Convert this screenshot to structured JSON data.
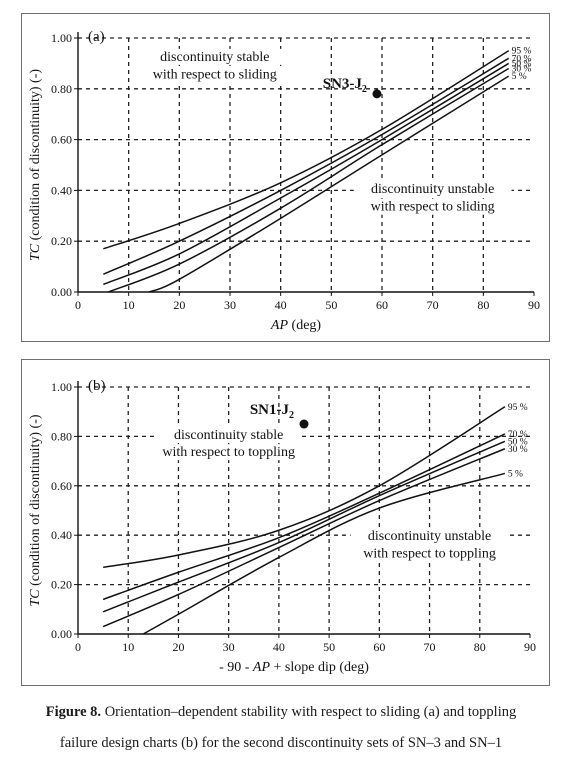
{
  "chart_data": [
    {
      "type": "line",
      "panel_label": "(a)",
      "ylabel_main": "TC",
      "ylabel_rest": " (condition of discontinuity) (-)",
      "xlabel": "AP",
      "xlabel_rest": " (deg)",
      "xlim": [
        0,
        90
      ],
      "ylim": [
        0,
        1
      ],
      "xticks": [
        "0",
        "10",
        "20",
        "30",
        "40",
        "50",
        "60",
        "70",
        "80",
        "90"
      ],
      "yticks": [
        "0.00",
        "0.20",
        "0.40",
        "0.60",
        "0.80",
        "1.00"
      ],
      "grid": true,
      "series": [
        {
          "name": "95 %",
          "points": [
            [
              5,
              0.17
            ],
            [
              20,
              0.27
            ],
            [
              40,
              0.43
            ],
            [
              60,
              0.64
            ],
            [
              85,
              0.95
            ]
          ]
        },
        {
          "name": "70 %",
          "points": [
            [
              5,
              0.07
            ],
            [
              20,
              0.2
            ],
            [
              40,
              0.4
            ],
            [
              60,
              0.62
            ],
            [
              85,
              0.92
            ]
          ]
        },
        {
          "name": "50 %",
          "points": [
            [
              5,
              0.03
            ],
            [
              20,
              0.15
            ],
            [
              40,
              0.37
            ],
            [
              60,
              0.6
            ],
            [
              85,
              0.9
            ]
          ]
        },
        {
          "name": "30 %",
          "points": [
            [
              6,
              0.0
            ],
            [
              20,
              0.11
            ],
            [
              40,
              0.33
            ],
            [
              60,
              0.58
            ],
            [
              85,
              0.88
            ]
          ]
        },
        {
          "name": "5 %",
          "points": [
            [
              14,
              0.0
            ],
            [
              20,
              0.05
            ],
            [
              40,
              0.29
            ],
            [
              60,
              0.54
            ],
            [
              85,
              0.85
            ]
          ]
        }
      ],
      "annotations": [
        {
          "text": "discontinuity stable",
          "x": 27,
          "y": 0.91
        },
        {
          "text": "with respect to sliding",
          "x": 27,
          "y": 0.84
        },
        {
          "text": "discontinuity unstable",
          "x": 70,
          "y": 0.39
        },
        {
          "text": "with respect to sliding",
          "x": 70,
          "y": 0.32
        }
      ],
      "point": {
        "label": "SN3-J",
        "sub": "2",
        "x": 59,
        "y": 0.78
      }
    },
    {
      "type": "line",
      "panel_label": "(b)",
      "ylabel_main": "TC",
      "ylabel_rest": " (condition of discontinuity) (-)",
      "xlabel_pre": "- 90 - ",
      "xlabel": "AP",
      "xlabel_rest": " + slope dip (deg)",
      "xlim": [
        0,
        90
      ],
      "ylim": [
        0,
        1
      ],
      "xticks": [
        "0",
        "10",
        "20",
        "30",
        "40",
        "50",
        "60",
        "70",
        "80",
        "90"
      ],
      "yticks": [
        "0.00",
        "0.20",
        "0.40",
        "0.60",
        "0.80",
        "1.00"
      ],
      "grid": true,
      "series": [
        {
          "name": "95 %",
          "points": [
            [
              5,
              0.27
            ],
            [
              20,
              0.32
            ],
            [
              40,
              0.42
            ],
            [
              60,
              0.6
            ],
            [
              85,
              0.92
            ]
          ]
        },
        {
          "name": "70 %",
          "points": [
            [
              5,
              0.14
            ],
            [
              20,
              0.25
            ],
            [
              40,
              0.39
            ],
            [
              60,
              0.57
            ],
            [
              85,
              0.81
            ]
          ]
        },
        {
          "name": "50 %",
          "points": [
            [
              5,
              0.09
            ],
            [
              20,
              0.21
            ],
            [
              40,
              0.37
            ],
            [
              60,
              0.56
            ],
            [
              85,
              0.78
            ]
          ]
        },
        {
          "name": "30 %",
          "points": [
            [
              5,
              0.03
            ],
            [
              20,
              0.16
            ],
            [
              40,
              0.35
            ],
            [
              60,
              0.54
            ],
            [
              85,
              0.75
            ]
          ]
        },
        {
          "name": "5 %",
          "points": [
            [
              13,
              0.0
            ],
            [
              20,
              0.08
            ],
            [
              40,
              0.31
            ],
            [
              60,
              0.51
            ],
            [
              85,
              0.65
            ]
          ]
        }
      ],
      "annotations": [
        {
          "text": "discontinuity stable",
          "x": 30,
          "y": 0.79
        },
        {
          "text": "with respect to toppling",
          "x": 30,
          "y": 0.72
        },
        {
          "text": "discontinuity unstable",
          "x": 70,
          "y": 0.38
        },
        {
          "text": "with respect to toppling",
          "x": 70,
          "y": 0.31
        }
      ],
      "point": {
        "label": "SN1-J",
        "sub": "2",
        "x": 45,
        "y": 0.85
      }
    }
  ],
  "caption": {
    "bold": "Figure 8.",
    "line1": " Orientation–dependent stability with respect to sliding (a) and toppling",
    "line2": "failure design charts (b) for the second discontinuity sets of SN–3 and SN–1"
  }
}
